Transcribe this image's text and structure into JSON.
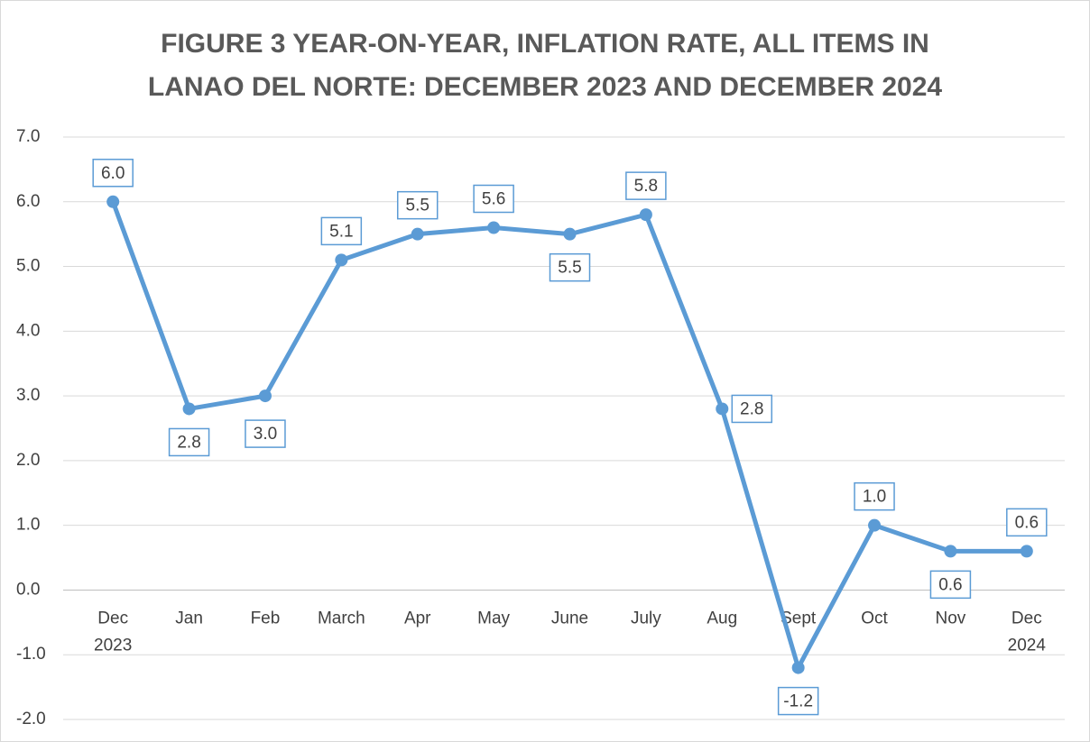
{
  "chart_data": {
    "type": "line",
    "title": "FIGURE 3 YEAR-ON-YEAR, INFLATION RATE, ALL ITEMS IN\nLANAO DEL NORTE: DECEMBER 2023 AND DECEMBER 2024",
    "categories": [
      "Dec\n2023",
      "Jan",
      "Feb",
      "March",
      "Apr",
      "May",
      "June",
      "July",
      "Aug",
      "Sept",
      "Oct",
      "Nov",
      "Dec\n2024"
    ],
    "series": [
      {
        "color": "#5b9bd5",
        "values": [
          6.0,
          2.8,
          3.0,
          5.1,
          5.5,
          5.6,
          5.5,
          5.8,
          2.8,
          -1.2,
          1.0,
          0.6,
          0.6
        ],
        "value_labels": [
          "6.0",
          "2.8",
          "3.0",
          "5.1",
          "5.5",
          "5.6",
          "5.5",
          "5.8",
          "2.8",
          "-1.2",
          "1.0",
          "0.6",
          "0.6"
        ]
      }
    ],
    "ylim": [
      -2,
      7
    ],
    "yticks": [
      {
        "value": -2,
        "label": "-2.0"
      },
      {
        "value": -1,
        "label": "-1.0"
      },
      {
        "value": 0,
        "label": "0.0"
      },
      {
        "value": 1,
        "label": "1.0"
      },
      {
        "value": 2,
        "label": "2.0"
      },
      {
        "value": 3,
        "label": "3.0"
      },
      {
        "value": 4,
        "label": "4.0"
      },
      {
        "value": 5,
        "label": "5.0"
      },
      {
        "value": 6,
        "label": "6.0"
      },
      {
        "value": 7,
        "label": "7.0"
      }
    ],
    "grid": true
  }
}
